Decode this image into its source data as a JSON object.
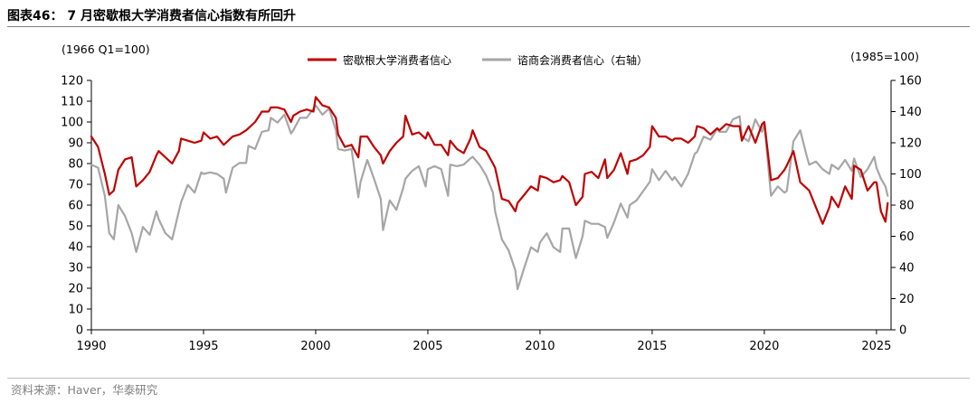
{
  "header": {
    "title": "图表46：  7 月密歇根大学消费者信心指数有所回升"
  },
  "footer": {
    "source": "资料来源：Haver，华泰研究"
  },
  "chart_data": {
    "type": "line",
    "title": "7 月密歇根大学消费者信心指数有所回升",
    "left_axis_note": "(1966 Q1=100)",
    "right_axis_note": "(1985=100)",
    "legend_position": "top-center",
    "grid": false,
    "colors": {
      "umich": "#c00000",
      "conf_board": "#a6a6a6"
    },
    "x_ticks": [
      "1990",
      "1995",
      "2000",
      "2005",
      "2010",
      "2015",
      "2020",
      "2025"
    ],
    "y_left": {
      "min": 0,
      "max": 120,
      "ticks": [
        0,
        10,
        20,
        30,
        40,
        50,
        60,
        70,
        80,
        90,
        100,
        110,
        120
      ]
    },
    "y_right": {
      "min": 0,
      "max": 160,
      "ticks": [
        0,
        20,
        40,
        60,
        80,
        100,
        120,
        140,
        160
      ]
    },
    "series": [
      {
        "name": "密歇根大学消费者信心",
        "axis": "left",
        "points": [
          [
            1990.0,
            93
          ],
          [
            1990.3,
            88
          ],
          [
            1990.6,
            75
          ],
          [
            1990.8,
            65
          ],
          [
            1991.0,
            67
          ],
          [
            1991.2,
            77
          ],
          [
            1991.5,
            82
          ],
          [
            1991.8,
            83
          ],
          [
            1992.0,
            69
          ],
          [
            1992.3,
            72
          ],
          [
            1992.6,
            76
          ],
          [
            1992.9,
            84
          ],
          [
            1993.0,
            86
          ],
          [
            1993.3,
            83
          ],
          [
            1993.6,
            80
          ],
          [
            1993.9,
            86
          ],
          [
            1994.0,
            92
          ],
          [
            1994.3,
            91
          ],
          [
            1994.6,
            90
          ],
          [
            1994.9,
            91
          ],
          [
            1995.0,
            95
          ],
          [
            1995.3,
            92
          ],
          [
            1995.6,
            93
          ],
          [
            1995.9,
            89
          ],
          [
            1996.0,
            90
          ],
          [
            1996.3,
            93
          ],
          [
            1996.6,
            94
          ],
          [
            1996.9,
            96
          ],
          [
            1997.0,
            97
          ],
          [
            1997.3,
            100
          ],
          [
            1997.6,
            105
          ],
          [
            1997.9,
            105
          ],
          [
            1998.0,
            107
          ],
          [
            1998.3,
            107
          ],
          [
            1998.6,
            106
          ],
          [
            1998.9,
            100
          ],
          [
            1999.0,
            103
          ],
          [
            1999.3,
            105
          ],
          [
            1999.6,
            106
          ],
          [
            1999.9,
            105
          ],
          [
            2000.0,
            112
          ],
          [
            2000.3,
            108
          ],
          [
            2000.6,
            107
          ],
          [
            2000.9,
            102
          ],
          [
            2001.0,
            94
          ],
          [
            2001.3,
            88
          ],
          [
            2001.6,
            89
          ],
          [
            2001.9,
            83
          ],
          [
            2002.0,
            93
          ],
          [
            2002.3,
            93
          ],
          [
            2002.6,
            88
          ],
          [
            2002.9,
            84
          ],
          [
            2003.0,
            80
          ],
          [
            2003.3,
            86
          ],
          [
            2003.6,
            90
          ],
          [
            2003.9,
            93
          ],
          [
            2004.0,
            103
          ],
          [
            2004.3,
            94
          ],
          [
            2004.6,
            95
          ],
          [
            2004.9,
            92
          ],
          [
            2005.0,
            95
          ],
          [
            2005.3,
            89
          ],
          [
            2005.6,
            89
          ],
          [
            2005.9,
            84
          ],
          [
            2006.0,
            91
          ],
          [
            2006.3,
            87
          ],
          [
            2006.6,
            85
          ],
          [
            2006.9,
            92
          ],
          [
            2007.0,
            96
          ],
          [
            2007.3,
            88
          ],
          [
            2007.6,
            86
          ],
          [
            2007.9,
            80
          ],
          [
            2008.0,
            78
          ],
          [
            2008.3,
            63
          ],
          [
            2008.6,
            62
          ],
          [
            2008.9,
            57
          ],
          [
            2009.0,
            61
          ],
          [
            2009.3,
            65
          ],
          [
            2009.6,
            69
          ],
          [
            2009.9,
            67
          ],
          [
            2010.0,
            74
          ],
          [
            2010.3,
            73
          ],
          [
            2010.6,
            71
          ],
          [
            2010.9,
            72
          ],
          [
            2011.0,
            74
          ],
          [
            2011.3,
            71
          ],
          [
            2011.6,
            60
          ],
          [
            2011.9,
            64
          ],
          [
            2012.0,
            75
          ],
          [
            2012.3,
            76
          ],
          [
            2012.6,
            73
          ],
          [
            2012.9,
            82
          ],
          [
            2013.0,
            73
          ],
          [
            2013.3,
            77
          ],
          [
            2013.6,
            85
          ],
          [
            2013.9,
            75
          ],
          [
            2014.0,
            81
          ],
          [
            2014.3,
            82
          ],
          [
            2014.6,
            84
          ],
          [
            2014.9,
            88
          ],
          [
            2015.0,
            98
          ],
          [
            2015.3,
            93
          ],
          [
            2015.6,
            93
          ],
          [
            2015.9,
            91
          ],
          [
            2016.0,
            92
          ],
          [
            2016.3,
            92
          ],
          [
            2016.6,
            90
          ],
          [
            2016.9,
            93
          ],
          [
            2017.0,
            98
          ],
          [
            2017.3,
            97
          ],
          [
            2017.6,
            94
          ],
          [
            2017.9,
            97
          ],
          [
            2018.0,
            96
          ],
          [
            2018.3,
            99
          ],
          [
            2018.6,
            98
          ],
          [
            2018.9,
            98
          ],
          [
            2019.0,
            91
          ],
          [
            2019.3,
            98
          ],
          [
            2019.6,
            90
          ],
          [
            2019.9,
            99
          ],
          [
            2020.0,
            100
          ],
          [
            2020.3,
            72
          ],
          [
            2020.6,
            73
          ],
          [
            2020.9,
            77
          ],
          [
            2021.0,
            79
          ],
          [
            2021.3,
            86
          ],
          [
            2021.6,
            71
          ],
          [
            2021.9,
            68
          ],
          [
            2022.0,
            67
          ],
          [
            2022.3,
            59
          ],
          [
            2022.6,
            51
          ],
          [
            2022.9,
            59
          ],
          [
            2023.0,
            64
          ],
          [
            2023.3,
            59
          ],
          [
            2023.6,
            69
          ],
          [
            2023.9,
            63
          ],
          [
            2024.0,
            79
          ],
          [
            2024.3,
            77
          ],
          [
            2024.6,
            67
          ],
          [
            2024.9,
            71
          ],
          [
            2025.0,
            71
          ],
          [
            2025.2,
            57
          ],
          [
            2025.4,
            52
          ],
          [
            2025.5,
            61
          ]
        ]
      },
      {
        "name": "谘商会消费者信心（右轴）",
        "axis": "right",
        "points": [
          [
            1990.0,
            106
          ],
          [
            1990.3,
            104
          ],
          [
            1990.6,
            86
          ],
          [
            1990.8,
            62
          ],
          [
            1991.0,
            58
          ],
          [
            1991.2,
            80
          ],
          [
            1991.5,
            73
          ],
          [
            1991.8,
            62
          ],
          [
            1992.0,
            50
          ],
          [
            1992.3,
            66
          ],
          [
            1992.6,
            61
          ],
          [
            1992.9,
            76
          ],
          [
            1993.0,
            71
          ],
          [
            1993.3,
            62
          ],
          [
            1993.6,
            58
          ],
          [
            1993.9,
            76
          ],
          [
            1994.0,
            82
          ],
          [
            1994.3,
            93
          ],
          [
            1994.6,
            88
          ],
          [
            1994.9,
            101
          ],
          [
            1995.0,
            100
          ],
          [
            1995.3,
            101
          ],
          [
            1995.6,
            100
          ],
          [
            1995.9,
            97
          ],
          [
            1996.0,
            88
          ],
          [
            1996.3,
            104
          ],
          [
            1996.6,
            107
          ],
          [
            1996.9,
            107
          ],
          [
            1997.0,
            118
          ],
          [
            1997.3,
            116
          ],
          [
            1997.6,
            127
          ],
          [
            1997.9,
            128
          ],
          [
            1998.0,
            136
          ],
          [
            1998.3,
            133
          ],
          [
            1998.6,
            138
          ],
          [
            1998.9,
            126
          ],
          [
            1999.0,
            128
          ],
          [
            1999.3,
            136
          ],
          [
            1999.6,
            136
          ],
          [
            1999.9,
            142
          ],
          [
            2000.0,
            144
          ],
          [
            2000.3,
            138
          ],
          [
            2000.6,
            142
          ],
          [
            2000.9,
            128
          ],
          [
            2001.0,
            116
          ],
          [
            2001.3,
            115
          ],
          [
            2001.6,
            116
          ],
          [
            2001.9,
            85
          ],
          [
            2002.0,
            95
          ],
          [
            2002.3,
            109
          ],
          [
            2002.6,
            97
          ],
          [
            2002.9,
            84
          ],
          [
            2003.0,
            64
          ],
          [
            2003.3,
            83
          ],
          [
            2003.6,
            77
          ],
          [
            2003.9,
            91
          ],
          [
            2004.0,
            97
          ],
          [
            2004.3,
            102
          ],
          [
            2004.6,
            105
          ],
          [
            2004.9,
            92
          ],
          [
            2005.0,
            103
          ],
          [
            2005.3,
            105
          ],
          [
            2005.6,
            103
          ],
          [
            2005.9,
            86
          ],
          [
            2006.0,
            106
          ],
          [
            2006.3,
            105
          ],
          [
            2006.6,
            106
          ],
          [
            2006.9,
            110
          ],
          [
            2007.0,
            111
          ],
          [
            2007.3,
            106
          ],
          [
            2007.6,
            99
          ],
          [
            2007.9,
            88
          ],
          [
            2008.0,
            76
          ],
          [
            2008.3,
            58
          ],
          [
            2008.6,
            51
          ],
          [
            2008.9,
            38
          ],
          [
            2009.0,
            26
          ],
          [
            2009.3,
            40
          ],
          [
            2009.6,
            53
          ],
          [
            2009.9,
            50
          ],
          [
            2010.0,
            56
          ],
          [
            2010.3,
            62
          ],
          [
            2010.6,
            53
          ],
          [
            2010.9,
            50
          ],
          [
            2011.0,
            65
          ],
          [
            2011.3,
            65
          ],
          [
            2011.6,
            46
          ],
          [
            2011.9,
            60
          ],
          [
            2012.0,
            70
          ],
          [
            2012.3,
            68
          ],
          [
            2012.6,
            68
          ],
          [
            2012.9,
            66
          ],
          [
            2013.0,
            59
          ],
          [
            2013.3,
            69
          ],
          [
            2013.6,
            81
          ],
          [
            2013.9,
            72
          ],
          [
            2014.0,
            80
          ],
          [
            2014.3,
            83
          ],
          [
            2014.6,
            89
          ],
          [
            2014.9,
            95
          ],
          [
            2015.0,
            103
          ],
          [
            2015.3,
            96
          ],
          [
            2015.6,
            102
          ],
          [
            2015.9,
            96
          ],
          [
            2016.0,
            98
          ],
          [
            2016.3,
            92
          ],
          [
            2016.6,
            100
          ],
          [
            2016.9,
            113
          ],
          [
            2017.0,
            114
          ],
          [
            2017.3,
            124
          ],
          [
            2017.6,
            122
          ],
          [
            2017.9,
            129
          ],
          [
            2018.0,
            127
          ],
          [
            2018.3,
            127
          ],
          [
            2018.6,
            135
          ],
          [
            2018.9,
            137
          ],
          [
            2019.0,
            124
          ],
          [
            2019.3,
            121
          ],
          [
            2019.6,
            135
          ],
          [
            2019.9,
            127
          ],
          [
            2020.0,
            132
          ],
          [
            2020.3,
            86
          ],
          [
            2020.6,
            92
          ],
          [
            2020.9,
            88
          ],
          [
            2021.0,
            89
          ],
          [
            2021.3,
            121
          ],
          [
            2021.6,
            128
          ],
          [
            2021.9,
            111
          ],
          [
            2022.0,
            106
          ],
          [
            2022.3,
            108
          ],
          [
            2022.6,
            103
          ],
          [
            2022.9,
            100
          ],
          [
            2023.0,
            106
          ],
          [
            2023.3,
            103
          ],
          [
            2023.6,
            109
          ],
          [
            2023.9,
            102
          ],
          [
            2024.0,
            110
          ],
          [
            2024.3,
            98
          ],
          [
            2024.6,
            103
          ],
          [
            2024.9,
            111
          ],
          [
            2025.0,
            104
          ],
          [
            2025.2,
            97
          ],
          [
            2025.4,
            92
          ],
          [
            2025.5,
            86
          ]
        ]
      }
    ]
  }
}
